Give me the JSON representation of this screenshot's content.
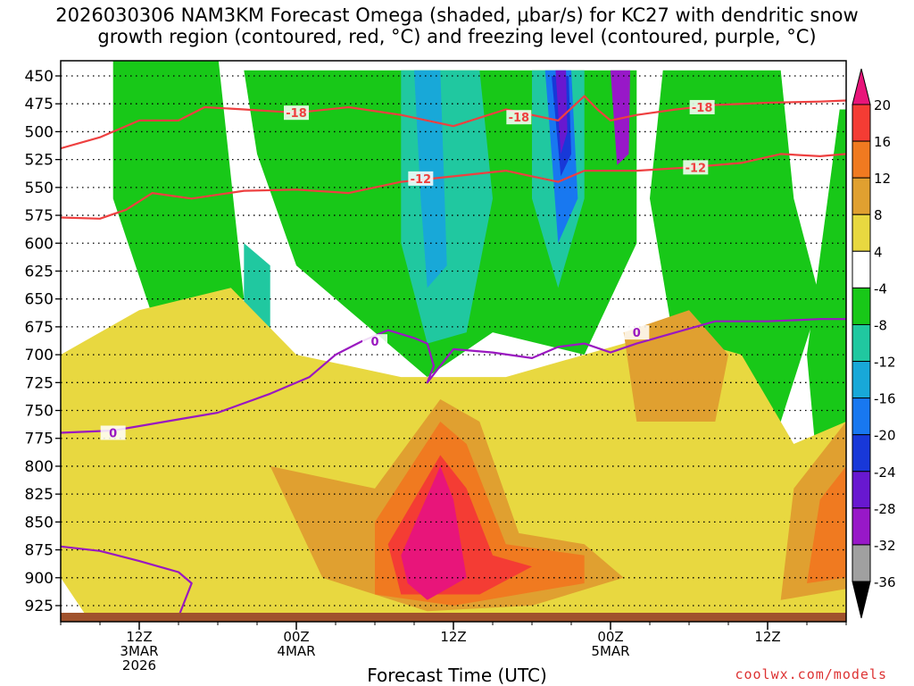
{
  "title_line1": "2026030306 NAM3KM Forecast Omega (shaded, μbar/s) for KC27 with dendritic snow",
  "title_line2": "growth region (contoured, red, °C) and freezing level (contoured, purple, °C)",
  "xlabel": "Forecast Time (UTC)",
  "credit": "coolwx.com/models",
  "chart_data": {
    "type": "heatmap",
    "title": "2026030306 NAM3KM Forecast Omega (shaded, μbar/s) for KC27 with dendritic snow growth region (contoured, red, °C) and freezing level (contoured, purple, °C)",
    "xlabel": "Forecast Time (UTC)",
    "ylabel": "",
    "ylim": [
      940,
      440
    ],
    "x_hours_since_init": [
      0,
      60
    ],
    "pressure_levels": [
      450,
      475,
      500,
      525,
      550,
      575,
      600,
      625,
      650,
      675,
      700,
      725,
      750,
      775,
      800,
      825,
      850,
      875,
      900,
      925
    ],
    "x_ticks": [
      {
        "hour": 6,
        "lines": [
          "12Z",
          "3MAR",
          "2026"
        ]
      },
      {
        "hour": 18,
        "lines": [
          "00Z",
          "4MAR"
        ]
      },
      {
        "hour": 30,
        "lines": [
          "12Z"
        ]
      },
      {
        "hour": 42,
        "lines": [
          "00Z",
          "5MAR"
        ]
      },
      {
        "hour": 54,
        "lines": [
          "12Z"
        ]
      }
    ],
    "colorbar": {
      "labels": [
        20,
        16,
        12,
        8,
        4,
        -4,
        -8,
        -12,
        -16,
        -20,
        -24,
        -28,
        -32,
        -36
      ],
      "colors": [
        "#e8157a",
        "#f43c34",
        "#f07a20",
        "#e0a030",
        "#e8d840",
        "#ffffff",
        "#18c818",
        "#20c8a0",
        "#18a8d8",
        "#1878f0",
        "#1838d8",
        "#6818d0",
        "#9818c8",
        "#a0a0a0",
        "#000000"
      ]
    },
    "omega_regions": [
      {
        "omega": -6,
        "color": "#18c818",
        "points": [
          [
            4,
            430
          ],
          [
            12,
            430
          ],
          [
            14,
            650
          ],
          [
            8,
            700
          ],
          [
            4,
            560
          ]
        ]
      },
      {
        "omega": -6,
        "color": "#18c818",
        "points": [
          [
            14,
            445
          ],
          [
            44,
            445
          ],
          [
            44,
            600
          ],
          [
            40,
            700
          ],
          [
            33,
            680
          ],
          [
            28,
            720
          ],
          [
            22,
            660
          ],
          [
            18,
            620
          ],
          [
            15,
            520
          ]
        ]
      },
      {
        "omega": -6,
        "color": "#18c818",
        "points": [
          [
            46,
            445
          ],
          [
            55,
            445
          ],
          [
            56,
            560
          ],
          [
            58,
            650
          ],
          [
            55,
            760
          ],
          [
            52,
            790
          ],
          [
            47,
            700
          ],
          [
            45,
            560
          ]
        ]
      },
      {
        "omega": -6,
        "color": "#18c818",
        "points": [
          [
            59.5,
            480
          ],
          [
            60,
            480
          ],
          [
            60,
            800
          ],
          [
            58,
            830
          ],
          [
            57,
            700
          ]
        ]
      },
      {
        "omega": -6,
        "color": "#18c818",
        "points": [
          [
            0,
            820
          ],
          [
            3,
            780
          ],
          [
            6,
            860
          ],
          [
            9,
            870
          ],
          [
            12,
            900
          ],
          [
            8,
            920
          ],
          [
            2,
            900
          ],
          [
            0,
            870
          ]
        ]
      },
      {
        "omega": -6,
        "color": "#18c818",
        "points": [
          [
            38,
            860
          ],
          [
            50,
            870
          ],
          [
            52,
            910
          ],
          [
            45,
            920
          ],
          [
            38,
            905
          ]
        ]
      },
      {
        "omega": -12,
        "color": "#20c8a0",
        "points": [
          [
            26,
            445
          ],
          [
            32,
            445
          ],
          [
            33,
            560
          ],
          [
            31,
            680
          ],
          [
            28,
            690
          ],
          [
            26,
            600
          ]
        ]
      },
      {
        "omega": -12,
        "color": "#20c8a0",
        "points": [
          [
            36,
            445
          ],
          [
            40,
            445
          ],
          [
            40,
            560
          ],
          [
            38,
            640
          ],
          [
            36,
            560
          ]
        ]
      },
      {
        "omega": -12,
        "color": "#20c8a0",
        "points": [
          [
            0,
            830
          ],
          [
            4,
            800
          ],
          [
            9,
            870
          ],
          [
            5,
            880
          ],
          [
            0,
            875
          ]
        ]
      },
      {
        "omega": -12,
        "color": "#20c8a0",
        "points": [
          [
            14,
            600
          ],
          [
            16,
            620
          ],
          [
            16,
            780
          ],
          [
            14,
            760
          ]
        ]
      },
      {
        "omega": -16,
        "color": "#18a8d8",
        "points": [
          [
            27,
            445
          ],
          [
            29,
            445
          ],
          [
            29.5,
            620
          ],
          [
            28,
            640
          ],
          [
            27.5,
            560
          ]
        ]
      },
      {
        "omega": -20,
        "color": "#1878f0",
        "points": [
          [
            37,
            445
          ],
          [
            39,
            445
          ],
          [
            39.5,
            560
          ],
          [
            38,
            600
          ],
          [
            37.5,
            520
          ]
        ]
      },
      {
        "omega": -24,
        "color": "#1838d8",
        "points": [
          [
            37.5,
            450
          ],
          [
            38.8,
            450
          ],
          [
            39,
            520
          ],
          [
            38.2,
            540
          ]
        ]
      },
      {
        "omega": -28,
        "color": "#6818d0",
        "points": [
          [
            37.8,
            445
          ],
          [
            38.6,
            445
          ],
          [
            38.7,
            500
          ],
          [
            38.2,
            520
          ]
        ]
      },
      {
        "omega": -32,
        "color": "#9818c8",
        "points": [
          [
            42,
            445
          ],
          [
            43.5,
            445
          ],
          [
            43.4,
            520
          ],
          [
            42.5,
            530
          ]
        ]
      },
      {
        "omega": 6,
        "color": "#e8d840",
        "points": [
          [
            0,
            700
          ],
          [
            6,
            660
          ],
          [
            13,
            640
          ],
          [
            18,
            700
          ],
          [
            26,
            720
          ],
          [
            34,
            720
          ],
          [
            40,
            700
          ],
          [
            46,
            680
          ],
          [
            52,
            700
          ],
          [
            56,
            780
          ],
          [
            60,
            760
          ],
          [
            60,
            935
          ],
          [
            2,
            935
          ],
          [
            0,
            900
          ]
        ]
      },
      {
        "omega": 10,
        "color": "#e0a030",
        "points": [
          [
            16,
            800
          ],
          [
            24,
            820
          ],
          [
            29,
            740
          ],
          [
            32,
            760
          ],
          [
            35,
            860
          ],
          [
            40,
            870
          ],
          [
            43,
            900
          ],
          [
            36,
            925
          ],
          [
            28,
            930
          ],
          [
            20,
            900
          ]
        ]
      },
      {
        "omega": 10,
        "color": "#e0a030",
        "points": [
          [
            43,
            680
          ],
          [
            48,
            660
          ],
          [
            51,
            700
          ],
          [
            50,
            760
          ],
          [
            44,
            760
          ]
        ]
      },
      {
        "omega": 10,
        "color": "#e0a030",
        "points": [
          [
            56,
            820
          ],
          [
            60,
            760
          ],
          [
            60,
            910
          ],
          [
            55,
            920
          ]
        ]
      },
      {
        "omega": 14,
        "color": "#f07a20",
        "points": [
          [
            24,
            850
          ],
          [
            29,
            760
          ],
          [
            31,
            780
          ],
          [
            34,
            870
          ],
          [
            40,
            880
          ],
          [
            40,
            905
          ],
          [
            30,
            925
          ],
          [
            24,
            915
          ]
        ]
      },
      {
        "omega": 14,
        "color": "#f07a20",
        "points": [
          [
            58,
            830
          ],
          [
            60,
            800
          ],
          [
            60,
            900
          ],
          [
            57,
            905
          ]
        ]
      },
      {
        "omega": 18,
        "color": "#f43c34",
        "points": [
          [
            25,
            870
          ],
          [
            29,
            790
          ],
          [
            31,
            820
          ],
          [
            33,
            880
          ],
          [
            36,
            890
          ],
          [
            32,
            915
          ],
          [
            26,
            915
          ]
        ]
      },
      {
        "omega": 22,
        "color": "#e8157a",
        "points": [
          [
            26,
            880
          ],
          [
            29,
            800
          ],
          [
            30,
            830
          ],
          [
            31,
            900
          ],
          [
            28,
            920
          ],
          [
            26.5,
            905
          ]
        ]
      }
    ],
    "contours": [
      {
        "level": -18,
        "color": "#ee4040",
        "points": [
          [
            0,
            515
          ],
          [
            3,
            505
          ],
          [
            6,
            490
          ],
          [
            9,
            490
          ],
          [
            11,
            478
          ],
          [
            14,
            480
          ],
          [
            18,
            483
          ],
          [
            22,
            478
          ],
          [
            26,
            485
          ],
          [
            30,
            495
          ],
          [
            34,
            480
          ],
          [
            38,
            490
          ],
          [
            40,
            468
          ],
          [
            41,
            480
          ],
          [
            42,
            490
          ],
          [
            44,
            485
          ],
          [
            47,
            480
          ],
          [
            50,
            476
          ],
          [
            54,
            474
          ],
          [
            58,
            473
          ],
          [
            60,
            472
          ]
        ],
        "labels": [
          {
            "x": 18,
            "p": 483
          },
          {
            "x": 35,
            "p": 487
          },
          {
            "x": 49,
            "p": 478
          }
        ]
      },
      {
        "level": -12,
        "color": "#ee4040",
        "points": [
          [
            0,
            577
          ],
          [
            3,
            578
          ],
          [
            5,
            570
          ],
          [
            7,
            555
          ],
          [
            10,
            560
          ],
          [
            14,
            553
          ],
          [
            18,
            552
          ],
          [
            22,
            555
          ],
          [
            26,
            545
          ],
          [
            30,
            540
          ],
          [
            34,
            535
          ],
          [
            36,
            540
          ],
          [
            38,
            545
          ],
          [
            40,
            535
          ],
          [
            44,
            535
          ],
          [
            48,
            532
          ],
          [
            52,
            528
          ],
          [
            55,
            520
          ],
          [
            58,
            522
          ],
          [
            60,
            520
          ]
        ],
        "labels": [
          {
            "x": 27.5,
            "p": 542
          },
          {
            "x": 48.5,
            "p": 532
          }
        ]
      },
      {
        "level": 0,
        "color": "#9a18c0",
        "points": [
          [
            0,
            770
          ],
          [
            4,
            768
          ],
          [
            8,
            760
          ],
          [
            12,
            752
          ],
          [
            16,
            735
          ],
          [
            19,
            720
          ],
          [
            21,
            700
          ],
          [
            23,
            688
          ],
          [
            25,
            678
          ],
          [
            27,
            685
          ],
          [
            28,
            690
          ],
          [
            28.5,
            710
          ],
          [
            28,
            725
          ],
          [
            29,
            710
          ],
          [
            30,
            695
          ],
          [
            33,
            698
          ],
          [
            36,
            703
          ],
          [
            38,
            693
          ],
          [
            40,
            690
          ],
          [
            42,
            698
          ],
          [
            44,
            690
          ],
          [
            47,
            680
          ],
          [
            50,
            670
          ],
          [
            54,
            670
          ],
          [
            58,
            668
          ],
          [
            60,
            668
          ]
        ],
        "labels": [
          {
            "x": 4,
            "p": 770
          },
          {
            "x": 24,
            "p": 688
          },
          {
            "x": 44,
            "p": 680
          }
        ]
      },
      {
        "level": 0,
        "color": "#9a18c0",
        "points": [
          [
            0,
            872
          ],
          [
            3,
            876
          ],
          [
            6,
            885
          ],
          [
            9,
            895
          ],
          [
            10,
            905
          ],
          [
            9,
            935
          ]
        ],
        "labels": []
      }
    ],
    "grid": "dotted",
    "legend": "right colorbar"
  }
}
